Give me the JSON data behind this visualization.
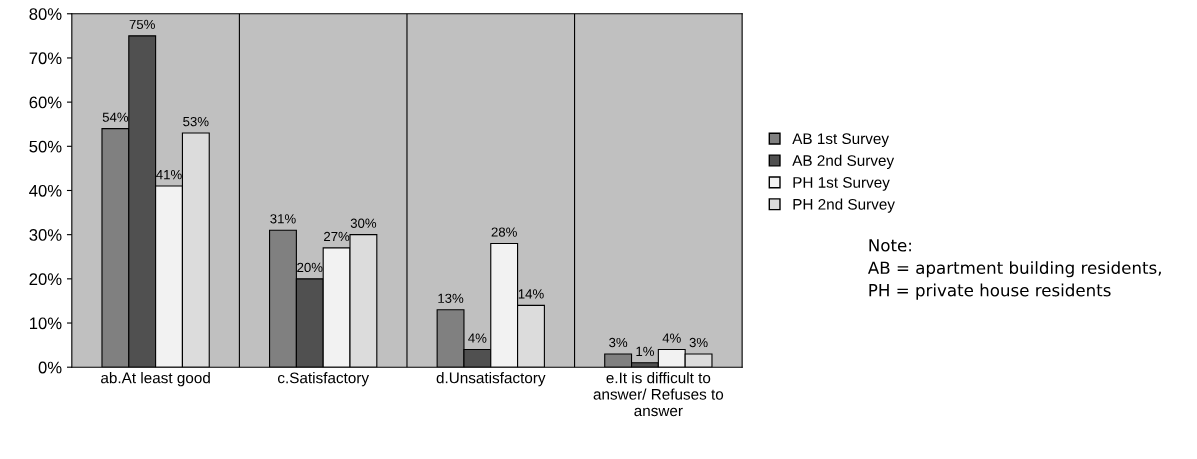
{
  "chart_data": {
    "type": "bar",
    "categories": [
      "ab.At least good",
      "c.Satisfactory",
      "d.Unsatisfactory",
      "e.It is difficult to\nanswer/ Refuses to\nanswer"
    ],
    "series": [
      {
        "name": "AB 1st Survey",
        "color": "#808080",
        "values": [
          54,
          31,
          13,
          3
        ],
        "value_labels": [
          "54%",
          "31%",
          "13%",
          "3%"
        ]
      },
      {
        "name": "AB 2nd Survey",
        "color": "#505050",
        "values": [
          75,
          20,
          4,
          1
        ],
        "value_labels": [
          "75%",
          "20%",
          "4%",
          "1%"
        ]
      },
      {
        "name": "PH 1st Survey",
        "color": "#f2f2f2",
        "values": [
          41,
          27,
          28,
          4
        ],
        "value_labels": [
          "41%",
          "27%",
          "28%",
          "4%"
        ]
      },
      {
        "name": "PH 2nd Survey",
        "color": "#dcdcdc",
        "values": [
          53,
          30,
          14,
          3
        ],
        "value_labels": [
          "53%",
          "30%",
          "14%",
          "3%"
        ]
      }
    ],
    "ylim": [
      0,
      80
    ],
    "yticks": [
      {
        "value": 0,
        "label": "0%"
      },
      {
        "value": 10,
        "label": "10%"
      },
      {
        "value": 20,
        "label": "20%"
      },
      {
        "value": 30,
        "label": "30%"
      },
      {
        "value": 40,
        "label": "40%"
      },
      {
        "value": 50,
        "label": "50%"
      },
      {
        "value": 60,
        "label": "60%"
      },
      {
        "value": 70,
        "label": "70%"
      },
      {
        "value": 80,
        "label": "80%"
      }
    ],
    "grid": "x",
    "legend": "right",
    "annotations": [
      "Note:\nAB = apartment building residents,\nPH = private house residents"
    ]
  }
}
